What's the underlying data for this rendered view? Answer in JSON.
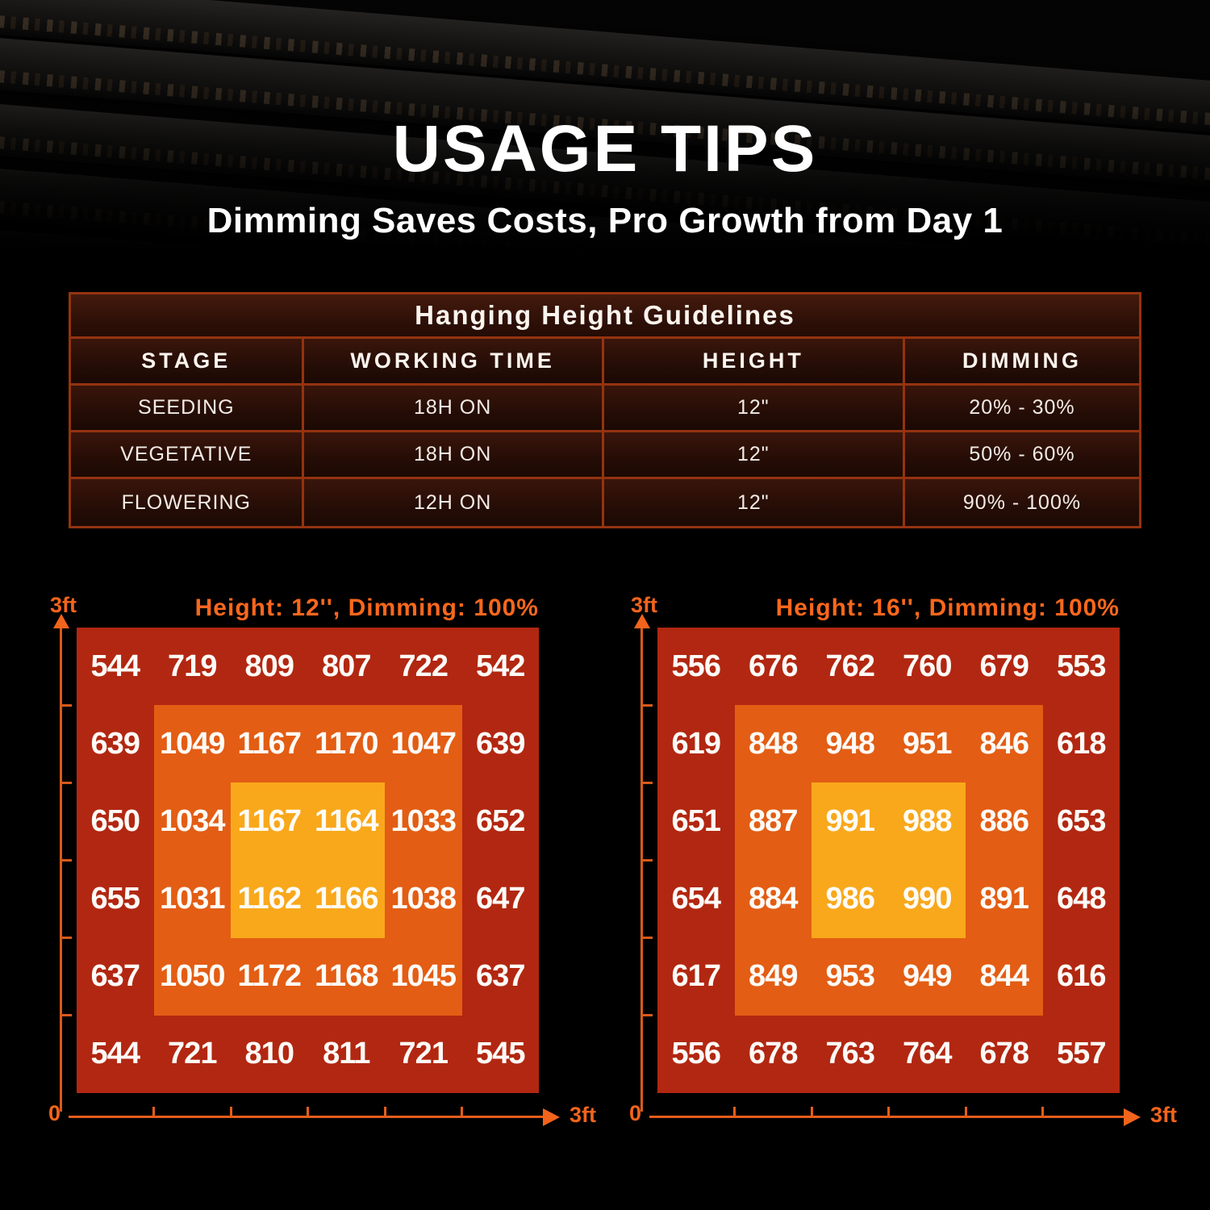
{
  "header": {
    "title": "USAGE TIPS",
    "subtitle": "Dimming Saves Costs, Pro Growth from Day 1"
  },
  "table": {
    "title": "Hanging Height Guidelines",
    "columns": [
      "STAGE",
      "WORKING TIME",
      "HEIGHT",
      "DIMMING"
    ],
    "rows": [
      [
        "SEEDING",
        "18H ON",
        "12\"",
        "20% - 30%"
      ],
      [
        "VEGETATIVE",
        "18H ON",
        "12\"",
        "50% - 60%"
      ],
      [
        "FLOWERING",
        "12H ON",
        "12\"",
        "90% - 100%"
      ]
    ]
  },
  "chart_data": [
    {
      "type": "heatmap",
      "title": "Height: 12'', Dimming: 100%",
      "grid_size": "6x6",
      "x_origin_label": "0",
      "x_max_label": "3ft",
      "y_max_label": "3ft",
      "x_range_ft": [
        0,
        3
      ],
      "y_range_ft": [
        0,
        3
      ],
      "values": [
        [
          544,
          719,
          809,
          807,
          722,
          542
        ],
        [
          639,
          1049,
          1167,
          1170,
          1047,
          639
        ],
        [
          650,
          1034,
          1167,
          1164,
          1033,
          652
        ],
        [
          655,
          1031,
          1162,
          1166,
          1038,
          647
        ],
        [
          637,
          1050,
          1172,
          1168,
          1045,
          637
        ],
        [
          544,
          721,
          810,
          811,
          721,
          545
        ]
      ]
    },
    {
      "type": "heatmap",
      "title": "Height: 16'', Dimming: 100%",
      "grid_size": "6x6",
      "x_origin_label": "0",
      "x_max_label": "3ft",
      "y_max_label": "3ft",
      "x_range_ft": [
        0,
        3
      ],
      "y_range_ft": [
        0,
        3
      ],
      "values": [
        [
          556,
          676,
          762,
          760,
          679,
          553
        ],
        [
          619,
          848,
          948,
          951,
          846,
          618
        ],
        [
          651,
          887,
          991,
          988,
          886,
          653
        ],
        [
          654,
          884,
          986,
          990,
          891,
          648
        ],
        [
          617,
          849,
          953,
          949,
          844,
          616
        ],
        [
          556,
          678,
          763,
          764,
          678,
          557
        ]
      ]
    }
  ],
  "colors": {
    "accent_orange": "#fa671c",
    "axis_orange": "#e55d1b",
    "zone_low": "#b22711",
    "zone_mid": "#e35d14",
    "zone_high": "#f9a81b",
    "table_border": "#94330f",
    "text_white": "#ffffff"
  }
}
